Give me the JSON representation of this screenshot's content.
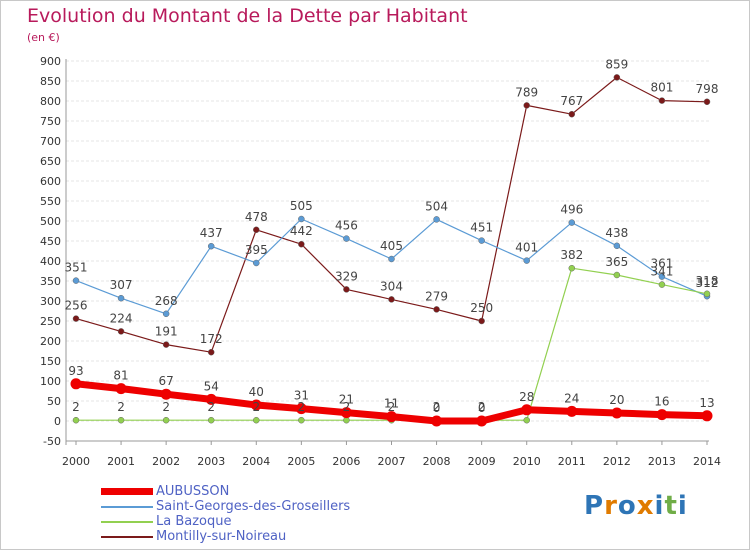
{
  "chart_data": {
    "type": "line",
    "title": "Evolution du Montant de la Dette par Habitant",
    "subtitle": "(en €)",
    "x": [
      "2000",
      "2001",
      "2002",
      "2003",
      "2004",
      "2005",
      "2006",
      "2007",
      "2008",
      "2009",
      "2010",
      "2011",
      "2012",
      "2013",
      "2014"
    ],
    "ylim": [
      -50,
      900
    ],
    "yticks": [
      -50,
      0,
      50,
      100,
      150,
      200,
      250,
      300,
      350,
      400,
      450,
      500,
      550,
      600,
      650,
      700,
      750,
      800,
      850,
      900
    ],
    "grid": "horizontal",
    "legend": "bottom-left",
    "series": [
      {
        "name": "AUBUSSON",
        "color": "#ee0000",
        "values": [
          93,
          81,
          67,
          54,
          40,
          31,
          21,
          11,
          0,
          0,
          28,
          24,
          20,
          16,
          13
        ],
        "labels": [
          "93",
          "81",
          "67",
          "54",
          "40",
          "31",
          "21",
          "11",
          "0",
          "0",
          "28",
          "24",
          "20",
          "16",
          "13"
        ]
      },
      {
        "name": "Saint-Georges-des-Groseillers",
        "color": "#5b9bd5",
        "values": [
          351,
          307,
          268,
          437,
          395,
          505,
          456,
          405,
          504,
          451,
          401,
          496,
          438,
          361,
          312
        ],
        "labels": [
          "351",
          "307",
          "268",
          "437",
          "395",
          "505",
          "456",
          "405",
          "504",
          "451",
          "401",
          "496",
          "438",
          "361",
          "312"
        ]
      },
      {
        "name": "La Bazoque",
        "color": "#92d050",
        "values": [
          2,
          2,
          2,
          2,
          2,
          2,
          2,
          2,
          2,
          2,
          2,
          382,
          365,
          341,
          318
        ],
        "labels": [
          "2",
          "2",
          "2",
          "2",
          "2",
          "2",
          "2",
          "2",
          "2",
          "2",
          "",
          "382",
          "365",
          "341",
          "318"
        ]
      },
      {
        "name": "Montilly-sur-Noireau",
        "color": "#7b1a1a",
        "values": [
          256,
          224,
          191,
          172,
          478,
          442,
          329,
          304,
          279,
          250,
          789,
          767,
          859,
          801,
          798
        ],
        "labels": [
          "256",
          "224",
          "191",
          "172",
          "478",
          "442",
          "329",
          "304",
          "279",
          "250",
          "789",
          "767",
          "859",
          "801",
          "798"
        ]
      }
    ]
  },
  "logo": {
    "text": "Proxiti",
    "letters": [
      "P",
      "r",
      "o",
      "x",
      "i",
      "t",
      "i"
    ],
    "colors": [
      "#2e75b6",
      "#e07b00",
      "#2e75b6",
      "#e07b00",
      "#2e75b6",
      "#70ad47",
      "#2e75b6"
    ]
  }
}
